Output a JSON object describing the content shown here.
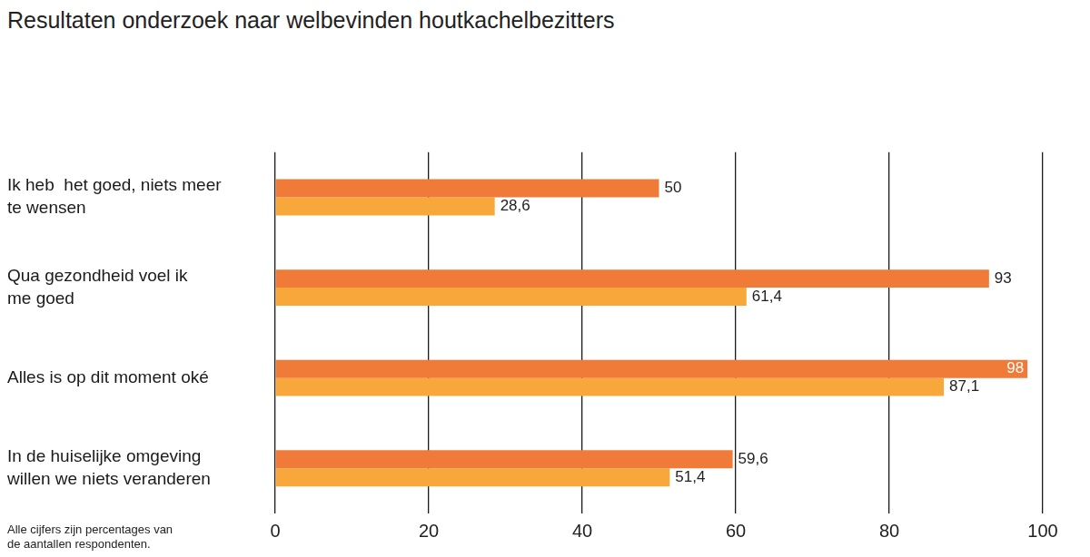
{
  "chart_data": {
    "type": "bar",
    "orientation": "horizontal",
    "title": "Resultaten onderzoek naar welbevinden houtkachelbezitters",
    "annotations": [
      "Alle cijfers zijn percentages van",
      "de aantallen respondenten."
    ],
    "categories": [
      [
        "Ik heb  het goed, niets meer",
        "te wensen"
      ],
      [
        "Qua gezondheid voel ik",
        "me goed"
      ],
      [
        "Alles is op dit moment oké"
      ],
      [
        "In de huiselijke omgeving",
        "willen we niets veranderen"
      ]
    ],
    "series": [
      {
        "color": "#f07a38",
        "values": [
          50,
          93,
          98,
          59.6
        ],
        "value_labels": [
          "50",
          "93",
          "98",
          "59,6"
        ]
      },
      {
        "color": "#f8a83a",
        "values": [
          28.6,
          61.4,
          87.1,
          51.4
        ],
        "value_labels": [
          "28,6",
          "61,4",
          "87,1",
          "51,4"
        ]
      }
    ],
    "xlim": [
      0,
      100
    ],
    "xticks": [
      0,
      20,
      40,
      60,
      80,
      100
    ],
    "grid": true,
    "data_labels": true
  }
}
